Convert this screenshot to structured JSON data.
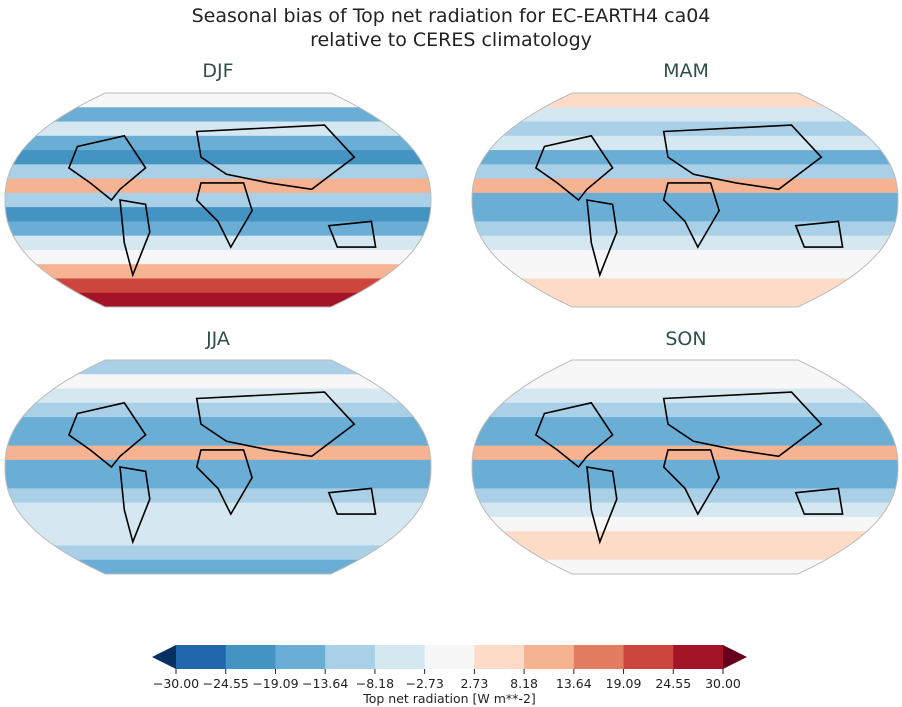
{
  "chart_data": {
    "type": "heatmap",
    "title": "Seasonal bias of Top net radiation for EC-EARTH4 ca04",
    "subtitle": "relative to CERES climatology",
    "panels": [
      {
        "name": "DJF",
        "bands": [
          6,
          3,
          5,
          3,
          2,
          4,
          8,
          4,
          2,
          3,
          5,
          6,
          8,
          10,
          11
        ]
      },
      {
        "name": "MAM",
        "bands": [
          7,
          5,
          4,
          5,
          3,
          4,
          8,
          3,
          3,
          4,
          5,
          6,
          6,
          7,
          7
        ]
      },
      {
        "name": "JJA",
        "bands": [
          4,
          6,
          5,
          4,
          3,
          3,
          8,
          3,
          3,
          4,
          5,
          5,
          5,
          4,
          3
        ]
      },
      {
        "name": "SON",
        "bands": [
          6,
          6,
          5,
          4,
          3,
          3,
          8,
          3,
          3,
          4,
          5,
          6,
          7,
          7,
          6
        ]
      }
    ],
    "colorbar": {
      "label": "Top net radiation [W m**-2]",
      "ticks": [
        "−30.00",
        "−24.55",
        "−19.09",
        "−13.64",
        "−8.18",
        "−2.73",
        "2.73",
        "8.18",
        "13.64",
        "19.09",
        "24.55",
        "30.00"
      ],
      "colors": [
        "#053061",
        "#2166ac",
        "#4393c3",
        "#6aaed6",
        "#a9d0e6",
        "#d5e7f1",
        "#f7f7f7",
        "#fddbc7",
        "#f5b391",
        "#e27d62",
        "#cc463e",
        "#a41428",
        "#67001f"
      ],
      "extend": "both"
    }
  }
}
